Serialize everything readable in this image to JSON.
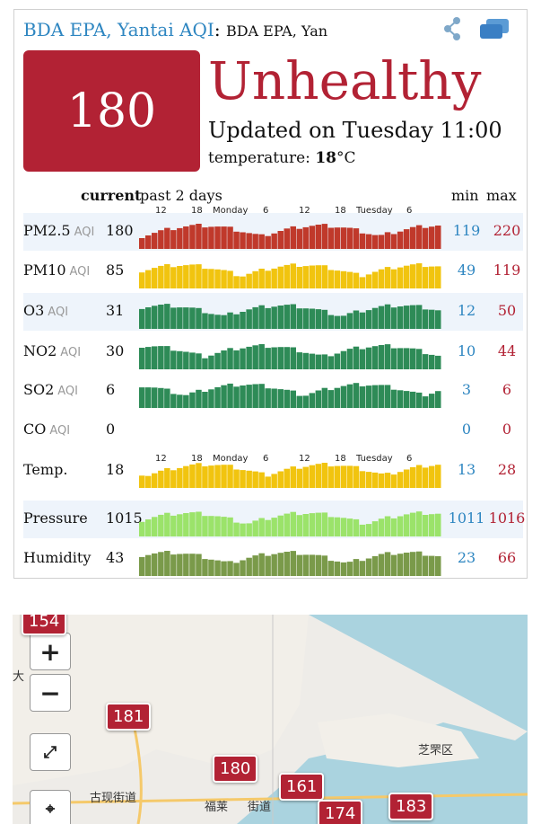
{
  "header": {
    "station": "BDA EPA, Yantai",
    "aqi_label": "AQI",
    "separator": ":",
    "station_short": "BDA EPA, Yan",
    "share_icon": "share-icon",
    "widget_icon": "widget-icon"
  },
  "summary": {
    "aqi_value": "180",
    "level": "Unhealthy",
    "updated": "Updated on Tuesday 11:00",
    "temperature_label": "temperature: ",
    "temperature_value": "18",
    "temperature_unit": "°C",
    "color": "#b22234"
  },
  "table": {
    "col_current": "current",
    "col_past": "past 2 days",
    "col_min": "min",
    "col_max": "max",
    "time_labels": [
      "12",
      "18",
      "Monday",
      "6",
      "12",
      "18",
      "Tuesday",
      "6"
    ],
    "rows": [
      {
        "name": "PM2.5",
        "unit": "AQI",
        "current": "180",
        "min": "119",
        "max": "220",
        "color": "#c0392b"
      },
      {
        "name": "PM10",
        "unit": "AQI",
        "current": "85",
        "min": "49",
        "max": "119",
        "color": "#f1c40f"
      },
      {
        "name": "O3",
        "unit": "AQI",
        "current": "31",
        "min": "12",
        "max": "50",
        "color": "#2e8b57"
      },
      {
        "name": "NO2",
        "unit": "AQI",
        "current": "30",
        "min": "10",
        "max": "44",
        "color": "#2e8b57"
      },
      {
        "name": "SO2",
        "unit": "AQI",
        "current": "6",
        "min": "3",
        "max": "6",
        "color": "#2e8b57"
      },
      {
        "name": "CO",
        "unit": "AQI",
        "current": "0",
        "min": "0",
        "max": "0",
        "color": "#2e8b57"
      },
      {
        "name": "Temp.",
        "unit": "",
        "current": "18",
        "min": "13",
        "max": "28",
        "color": "#f1c40f"
      },
      {
        "name": "Pressure",
        "unit": "",
        "current": "1015",
        "min": "1011",
        "max": "1016",
        "color": "#9be36a"
      },
      {
        "name": "Humidity",
        "unit": "",
        "current": "43",
        "min": "23",
        "max": "66",
        "color": "#7a9a4a"
      }
    ]
  },
  "map": {
    "zoom_in": "+",
    "zoom_out": "−",
    "markers": [
      "154",
      "181",
      "180",
      "161",
      "174",
      "183"
    ],
    "place_labels": [
      "古现街道",
      "福莱",
      "街道",
      "芝罘区",
      "大"
    ]
  }
}
